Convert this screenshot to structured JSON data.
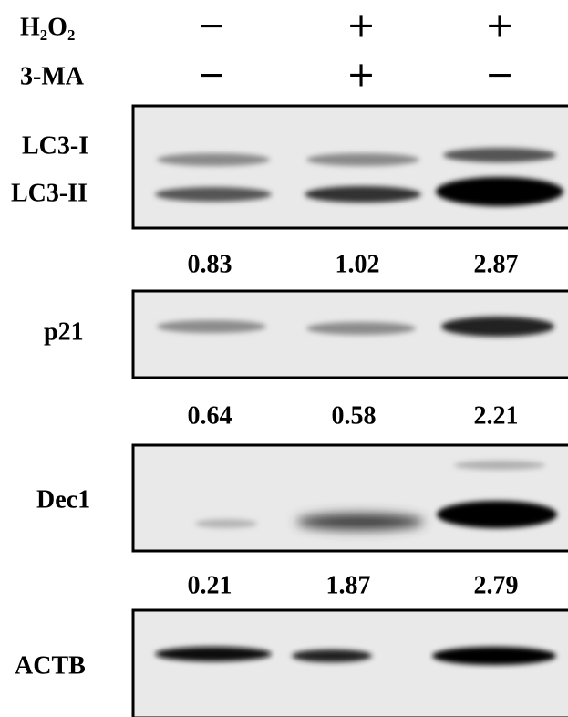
{
  "treatments": [
    {
      "label": "H₂O₂",
      "signs": [
        "−",
        "+",
        "+"
      ]
    },
    {
      "label": "3-MA",
      "signs": [
        "−",
        "+",
        "−"
      ]
    }
  ],
  "blots": [
    {
      "band_labels": [
        "LC3-I",
        "LC3-II"
      ],
      "quantification": [
        "0.83",
        "1.02",
        "2.87"
      ]
    },
    {
      "band_labels": [
        "p21"
      ],
      "quantification": [
        "0.64",
        "0.58",
        "2.21"
      ]
    },
    {
      "band_labels": [
        "Dec1"
      ],
      "quantification": [
        "0.21",
        "1.87",
        "2.79"
      ]
    },
    {
      "band_labels": [
        "ACTB"
      ]
    }
  ]
}
